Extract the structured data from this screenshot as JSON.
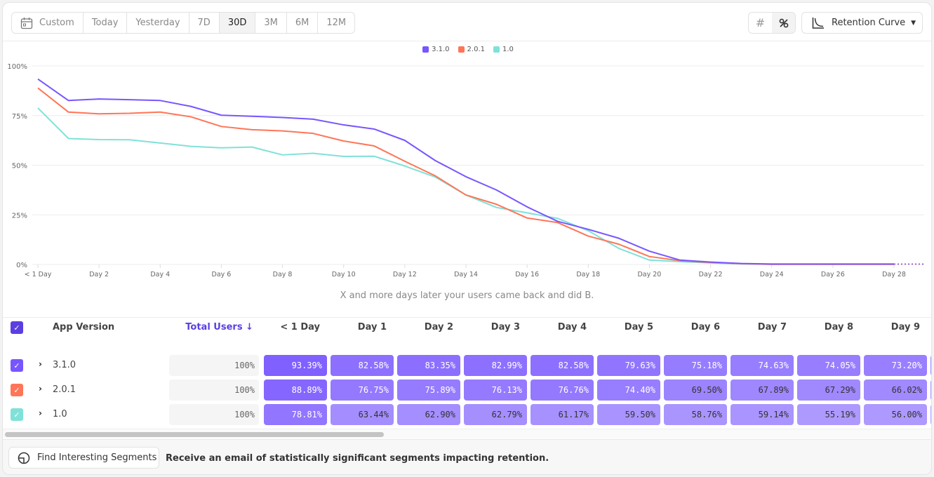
{
  "toolbar": {
    "date_ranges": [
      {
        "label": "Custom",
        "icon": "calendar-icon"
      },
      {
        "label": "Today"
      },
      {
        "label": "Yesterday"
      },
      {
        "label": "7D"
      },
      {
        "label": "30D",
        "active": true
      },
      {
        "label": "3M"
      },
      {
        "label": "6M"
      },
      {
        "label": "12M"
      }
    ],
    "format_toggle": {
      "count_icon": "hash-icon",
      "percent_icon": "percent-icon",
      "selected": "percent"
    },
    "chart_type": {
      "label": "Retention Curve",
      "icon": "retention-curve-icon"
    }
  },
  "chart_data": {
    "type": "line",
    "title": "",
    "xlabel": "X and more days later your users came back and did B.",
    "ylabel": "",
    "ylim": [
      0,
      100
    ],
    "y_ticks": [
      "0%",
      "25%",
      "50%",
      "75%",
      "100%"
    ],
    "x_tick_labels": [
      "< 1 Day",
      "Day 2",
      "Day 4",
      "Day 6",
      "Day 8",
      "Day 10",
      "Day 12",
      "Day 14",
      "Day 16",
      "Day 18",
      "Day 20",
      "Day 22",
      "Day 24",
      "Day 26",
      "Day 28"
    ],
    "x": [
      0,
      1,
      2,
      3,
      4,
      5,
      6,
      7,
      8,
      9,
      10,
      11,
      12,
      13,
      14,
      15,
      16,
      17,
      18,
      19,
      20,
      21,
      22,
      23,
      24,
      25,
      26,
      27,
      28,
      29
    ],
    "grid": true,
    "legend": "top-center",
    "series": [
      {
        "name": "3.1.0",
        "color": "#7856FF",
        "values": [
          93.39,
          82.58,
          83.35,
          82.99,
          82.58,
          79.63,
          75.18,
          74.63,
          74.05,
          73.2,
          70.3,
          68.2,
          62.5,
          52.3,
          44.2,
          37.5,
          29.0,
          21.7,
          17.7,
          13.2,
          6.7,
          2.2,
          1.2,
          0.5,
          0.2,
          0.2,
          0.2,
          0.2,
          0.2,
          0.2
        ]
      },
      {
        "name": "2.0.1",
        "color": "#FF7557",
        "values": [
          88.89,
          76.75,
          75.89,
          76.13,
          76.76,
          74.4,
          69.5,
          67.89,
          67.29,
          66.02,
          62.2,
          59.7,
          52.0,
          44.6,
          35.0,
          30.3,
          23.4,
          21.1,
          14.3,
          10.2,
          4.0,
          1.9,
          1.0,
          0.4,
          0.1,
          0.1,
          0.1,
          0.1,
          0.1,
          0.1
        ]
      },
      {
        "name": "1.0",
        "color": "#80E1D9",
        "values": [
          78.81,
          63.44,
          62.9,
          62.79,
          61.17,
          59.5,
          58.76,
          59.14,
          55.19,
          56.0,
          54.4,
          54.5,
          49.6,
          44.0,
          35.0,
          28.7,
          26.0,
          23.2,
          17.0,
          8.1,
          2.2,
          1.4,
          0.8,
          0.3,
          0.1,
          0.1,
          0.1,
          0.1,
          0.1,
          0.1
        ]
      }
    ]
  },
  "table": {
    "headers": {
      "segment": "App Version",
      "total": "Total Users ↓",
      "days": [
        "< 1 Day",
        "Day 1",
        "Day 2",
        "Day 3",
        "Day 4",
        "Day 5",
        "Day 6",
        "Day 7",
        "Day 8",
        "Day 9"
      ]
    },
    "accent": "#5B3FE0",
    "rows": [
      {
        "name": "3.1.0",
        "color": "#7856FF",
        "total": "100%",
        "cells": [
          "93.39%",
          "82.58%",
          "83.35%",
          "82.99%",
          "82.58%",
          "79.63%",
          "75.18%",
          "74.63%",
          "74.05%",
          "73.20%"
        ]
      },
      {
        "name": "2.0.1",
        "color": "#FF7557",
        "total": "100%",
        "cells": [
          "88.89%",
          "76.75%",
          "75.89%",
          "76.13%",
          "76.76%",
          "74.40%",
          "69.50%",
          "67.89%",
          "67.29%",
          "66.02%"
        ]
      },
      {
        "name": "1.0",
        "color": "#80E1D9",
        "total": "100%",
        "cells": [
          "78.81%",
          "63.44%",
          "62.90%",
          "62.79%",
          "61.17%",
          "59.50%",
          "58.76%",
          "59.14%",
          "55.19%",
          "56.00%"
        ]
      }
    ]
  },
  "footer": {
    "button_label": "Find Interesting Segments",
    "button_icon": "segments-icon",
    "message": "Receive an email of statistically significant segments impacting retention."
  }
}
